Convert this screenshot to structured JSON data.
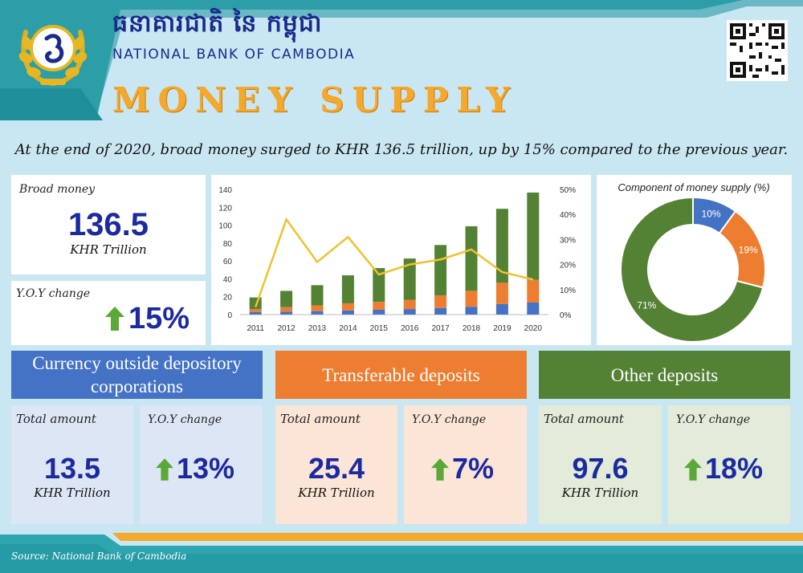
{
  "header": {
    "bank_name_khmer": "ធនាគារជាតិ នៃ កម្ពុជា",
    "bank_name_english": "NATIONAL BANK OF CAMBODIA",
    "title": "MONEY SUPPLY"
  },
  "summary_text": "At the end  of 2020, broad money surged to KHR 136.5 trillion, up by 15% compared to the previous year.",
  "broad_money": {
    "label": "Broad money",
    "value": "136.5",
    "unit": "KHR Trillion",
    "yoy_label": "Y.O.Y change",
    "yoy_value": "15%"
  },
  "sections": [
    {
      "title": "Currency outside depository corporations",
      "color": "#4472c4",
      "bg": "#dde6f4",
      "total_label": "Total amount",
      "total_value": "13.5",
      "unit": "KHR Trillion",
      "yoy_label": "Y.O.Y change",
      "yoy_value": "13%"
    },
    {
      "title": "Transferable deposits",
      "color": "#ed7d31",
      "bg": "#fbe5d6",
      "total_label": "Total amount",
      "total_value": "25.4",
      "unit": "KHR Trillion",
      "yoy_label": "Y.O.Y change",
      "yoy_value": "7%"
    },
    {
      "title": "Other deposits",
      "color": "#548235",
      "bg": "#e2ecd9",
      "total_label": "Total amount",
      "total_value": "97.6",
      "unit": "KHR Trillion",
      "yoy_label": "Y.O.Y change",
      "yoy_value": "18%"
    }
  ],
  "source": "Source: National Bank of Cambodia",
  "colors": {
    "arrow": "#5aa839",
    "value_blue": "#1c2aa0",
    "teal": "#3aa8b0",
    "orange_band": "#f4a82c"
  },
  "chart_data": [
    {
      "type": "bar",
      "stacked": true,
      "categories": [
        "2011",
        "2012",
        "2013",
        "2014",
        "2015",
        "2016",
        "2017",
        "2018",
        "2019",
        "2020"
      ],
      "series": [
        {
          "values": [
            2.9,
            3.3,
            3.9,
            4.6,
            5.4,
            6.2,
            7.4,
            8.8,
            11.9,
            13.5
          ],
          "color": "#4472c4"
        },
        {
          "values": [
            3.3,
            5.0,
            6.4,
            8.0,
            8.8,
            10.3,
            14.0,
            17.8,
            23.7,
            25.4
          ],
          "color": "#ed7d31"
        },
        {
          "values": [
            13.0,
            18.2,
            22.6,
            31.3,
            37.8,
            46.2,
            56.4,
            72.2,
            82.7,
            97.6
          ],
          "color": "#548235"
        }
      ],
      "line": {
        "axis": "right",
        "values": [
          3,
          38,
          21,
          31,
          16,
          20,
          22,
          26,
          17,
          14
        ],
        "color": "#f2c12e"
      },
      "ylim": [
        0,
        140
      ],
      "yticks": [
        0,
        20,
        40,
        60,
        80,
        100,
        120,
        140
      ],
      "y2lim": [
        0,
        50
      ],
      "y2ticks": [
        "0%",
        "10%",
        "20%",
        "30%",
        "40%",
        "50%"
      ],
      "grid": false,
      "legend": "none"
    },
    {
      "type": "pie",
      "donut": true,
      "title": "Component of money supply (%)",
      "labels": [
        "10%",
        "19%",
        "71%"
      ],
      "values": [
        10,
        19,
        71
      ],
      "colors": [
        "#4472c4",
        "#ed7d31",
        "#548235"
      ]
    }
  ]
}
